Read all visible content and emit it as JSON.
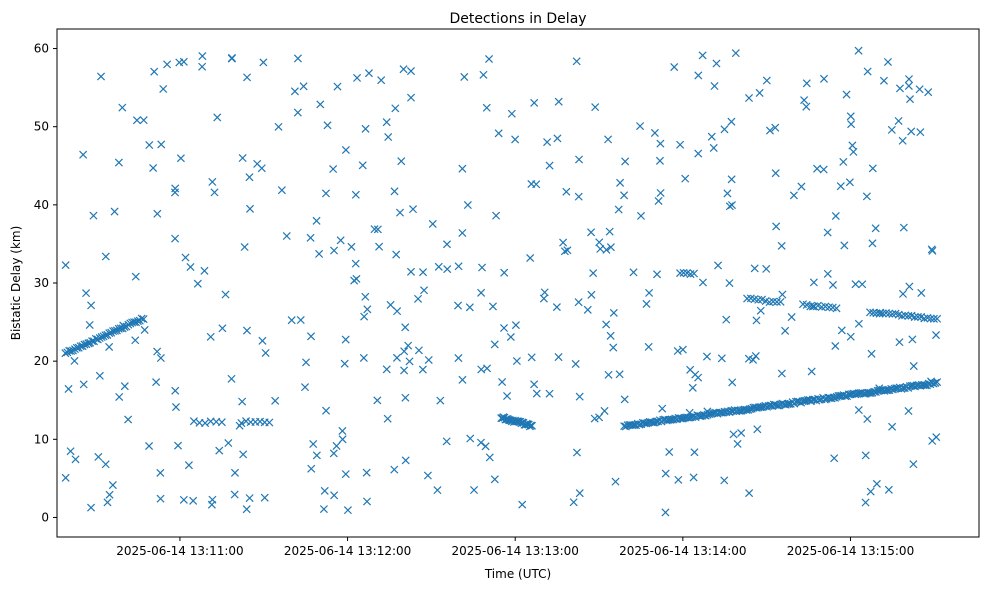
{
  "chart_data": {
    "type": "scatter",
    "title": "Detections in Delay",
    "xlabel": "Time (UTC)",
    "ylabel": "Bistatic Delay (km)",
    "marker": "x",
    "color": "#1f77b4",
    "grid": false,
    "legend": "none",
    "x_axis_kind": "time",
    "xlim": [
      "2025-06-14 13:10:16",
      "2025-06-14 13:15:46"
    ],
    "ylim": [
      -2.5,
      62.5
    ],
    "x_ticks": [
      "2025-06-14 13:11:00",
      "2025-06-14 13:12:00",
      "2025-06-14 13:13:00",
      "2025-06-14 13:14:00",
      "2025-06-14 13:15:00"
    ],
    "y_ticks": [
      0,
      10,
      20,
      30,
      40,
      50,
      60
    ],
    "tracks": [
      {
        "x_start": "2025-06-14 13:10:19",
        "x_end": "2025-06-14 13:10:47",
        "y_start": 21.0,
        "y_end": 25.5,
        "count": 42
      },
      {
        "x_start": "2025-06-14 13:11:05",
        "x_end": "2025-06-14 13:11:15",
        "y_start": 12.2,
        "y_end": 12.2,
        "count": 6
      },
      {
        "x_start": "2025-06-14 13:11:22",
        "x_end": "2025-06-14 13:11:32",
        "y_start": 12.2,
        "y_end": 12.2,
        "count": 7
      },
      {
        "x_start": "2025-06-14 13:12:55",
        "x_end": "2025-06-14 13:13:06",
        "y_start": 12.8,
        "y_end": 11.7,
        "count": 30
      },
      {
        "x_start": "2025-06-14 13:13:39",
        "x_end": "2025-06-14 13:15:31",
        "y_start": 11.7,
        "y_end": 17.2,
        "count": 185
      },
      {
        "x_start": "2025-06-14 13:13:59",
        "x_end": "2025-06-14 13:14:04",
        "y_start": 31.2,
        "y_end": 31.2,
        "count": 5
      },
      {
        "x_start": "2025-06-14 13:14:23",
        "x_end": "2025-06-14 13:14:35",
        "y_start": 28.0,
        "y_end": 27.5,
        "count": 10
      },
      {
        "x_start": "2025-06-14 13:14:43",
        "x_end": "2025-06-14 13:14:55",
        "y_start": 27.2,
        "y_end": 26.8,
        "count": 10
      },
      {
        "x_start": "2025-06-14 13:15:07",
        "x_end": "2025-06-14 13:15:31",
        "y_start": 26.3,
        "y_end": 25.4,
        "count": 22
      }
    ],
    "clutter_points_estimate": 440
  }
}
